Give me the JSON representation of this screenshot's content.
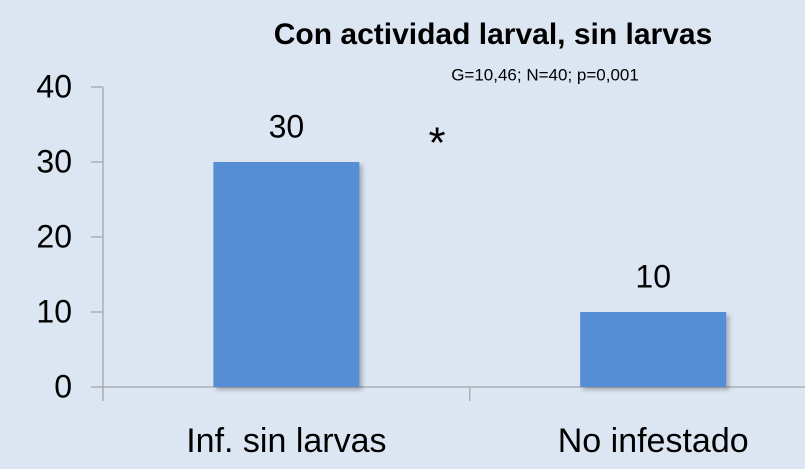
{
  "chart_data": {
    "type": "bar",
    "title": "Con actividad larval, sin larvas",
    "subtitle": "G=10,46; N=40; p=0,001",
    "annotation": "*",
    "categories": [
      "Inf. sin larvas",
      "No infestado"
    ],
    "values": [
      30,
      10
    ],
    "color": "#558ed5",
    "ylim": [
      0,
      40
    ],
    "yticks": [
      0,
      10,
      20,
      30,
      40
    ],
    "grid": false
  }
}
